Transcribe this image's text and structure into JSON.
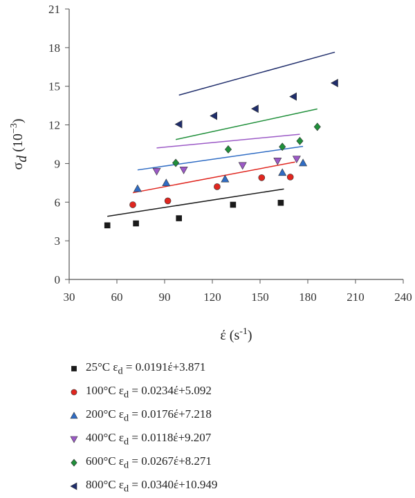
{
  "chart_data": {
    "type": "scatter",
    "title": "",
    "xlabel_base": "έ (s",
    "xlabel_sup": "-1",
    "xlabel_close": ")",
    "ylabel_main": "σ",
    "ylabel_sub": "d",
    "ylabel_unit": " (10",
    "ylabel_sup": "−3",
    "ylabel_close": ")",
    "xlim": [
      30,
      240
    ],
    "ylim": [
      0,
      21
    ],
    "xticks": [
      "30",
      "60",
      "90",
      "120",
      "150",
      "180",
      "210",
      "240"
    ],
    "yticks": [
      "0",
      "3",
      "6",
      "9",
      "12",
      "15",
      "18",
      "21"
    ],
    "grid": false,
    "legend_placement": "below",
    "series": [
      {
        "temp": "25°C",
        "eq_prefix": "ε",
        "eq_sub": "d",
        "eq_rest": " = 0.0191έ+3.871",
        "marker": "square",
        "color": "#1a1a1a",
        "line_color": "#1a1a1a",
        "x": [
          54,
          72,
          99,
          133,
          163
        ],
        "y": [
          4.2,
          4.35,
          4.75,
          5.8,
          5.95
        ],
        "fit": {
          "slope": 0.0191,
          "intercept": 3.871,
          "x_range": [
            54,
            165
          ]
        }
      },
      {
        "temp": "100°C",
        "eq_prefix": "ε",
        "eq_sub": "d",
        "eq_rest": " = 0.0234έ+5.092",
        "marker": "circle",
        "color": "#e0261f",
        "line_color": "#e0261f",
        "x": [
          70,
          92,
          123,
          151,
          169
        ],
        "y": [
          5.8,
          6.1,
          7.2,
          7.9,
          7.95
        ],
        "fit": {
          "slope": 0.0234,
          "intercept": 5.092,
          "x_range": [
            70,
            172
          ]
        }
      },
      {
        "temp": "200°C",
        "eq_prefix": "ε",
        "eq_sub": "d",
        "eq_rest": " = 0.0176έ+7.218",
        "marker": "triangle-up",
        "color": "#2f6cc4",
        "line_color": "#2f6cc4",
        "x": [
          73,
          91,
          128,
          164,
          177
        ],
        "y": [
          7.05,
          7.5,
          7.8,
          8.3,
          9.05
        ],
        "fit": {
          "slope": 0.0176,
          "intercept": 7.218,
          "x_range": [
            73,
            177
          ]
        }
      },
      {
        "temp": "400°C",
        "eq_prefix": "ε",
        "eq_sub": "d",
        "eq_rest": " = 0.0118έ+9.207",
        "marker": "triangle-down",
        "color": "#9b59c6",
        "line_color": "#9b59c6",
        "x": [
          85,
          102,
          139,
          161,
          173
        ],
        "y": [
          8.4,
          8.5,
          8.85,
          9.2,
          9.35
        ],
        "fit": {
          "slope": 0.0118,
          "intercept": 9.207,
          "x_range": [
            85,
            175
          ]
        }
      },
      {
        "temp": "600°C",
        "eq_prefix": "ε",
        "eq_sub": "d",
        "eq_rest": " = 0.0267έ+8.271",
        "marker": "diamond",
        "color": "#1f8f3a",
        "line_color": "#1f8f3a",
        "x": [
          97,
          130,
          164,
          175,
          186
        ],
        "y": [
          9.05,
          10.1,
          10.3,
          10.75,
          11.85
        ],
        "fit": {
          "slope": 0.0267,
          "intercept": 8.271,
          "x_range": [
            97,
            186
          ]
        }
      },
      {
        "temp": "800°C",
        "eq_prefix": "ε",
        "eq_sub": "d",
        "eq_rest": " = 0.0340έ+10.949",
        "marker": "triangle-left",
        "color": "#1f2d6b",
        "line_color": "#1f2d6b",
        "x": [
          99,
          121,
          147,
          171,
          197
        ],
        "y": [
          12.05,
          12.7,
          13.25,
          14.2,
          15.25
        ],
        "fit": {
          "slope": 0.034,
          "intercept": 10.949,
          "x_range": [
            99,
            197
          ]
        }
      }
    ]
  }
}
